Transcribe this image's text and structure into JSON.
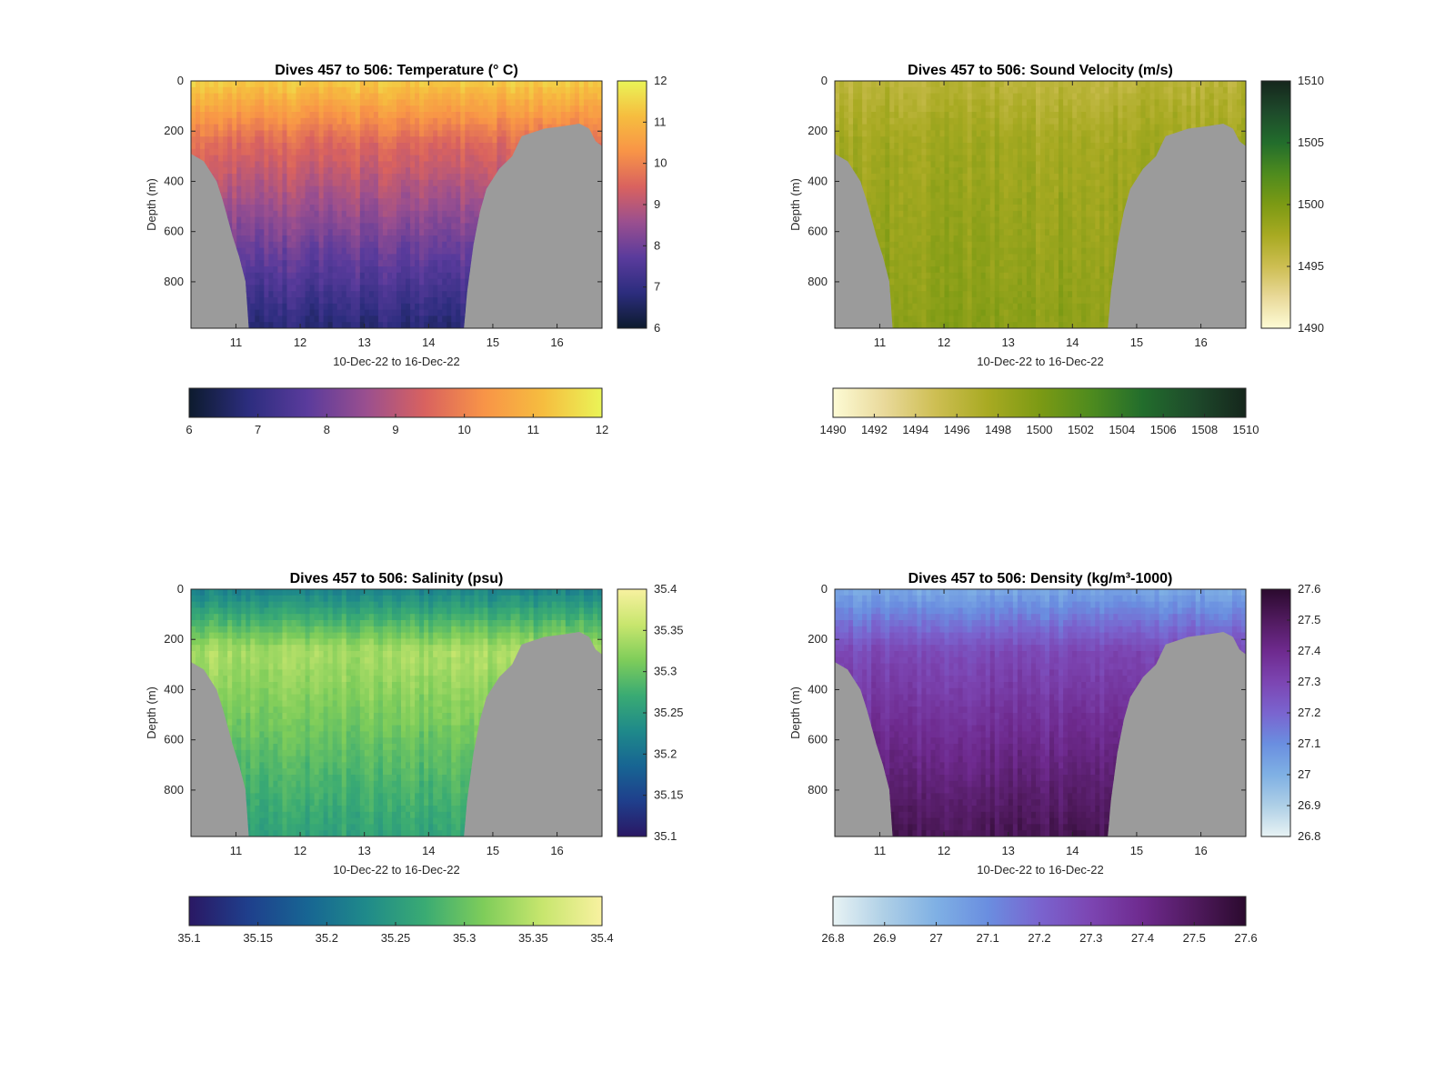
{
  "theme": {
    "land_color": "#9b9b9b",
    "axis_color": "#262626"
  },
  "chart_data": [
    {
      "type": "heatmap",
      "title": "Dives 457 to 506: Temperature (° C)",
      "xlabel": "10-Dec-22 to 16-Dec-22",
      "ylabel": "Depth (m)",
      "xlim": [
        10.3,
        16.7
      ],
      "ylim": [
        0,
        985
      ],
      "x_ticks": [
        11,
        12,
        13,
        14,
        15,
        16
      ],
      "y_ticks": [
        0,
        200,
        400,
        600,
        800
      ],
      "colorbar": {
        "ticks": [
          "6",
          "7",
          "8",
          "9",
          "10",
          "11",
          "12"
        ],
        "range": [
          6,
          12
        ],
        "colors": [
          "#0d1b2e",
          "#2c2d7e",
          "#5a3b9c",
          "#9a4f8f",
          "#d9625f",
          "#f89447",
          "#f6bd3f",
          "#eaf457"
        ]
      },
      "profile": {
        "surface": 11.4,
        "mid": 9.6,
        "bottom": 6.8
      },
      "bathymetry": [
        [
          10.3,
          290
        ],
        [
          10.5,
          320
        ],
        [
          10.7,
          400
        ],
        [
          10.8,
          480
        ],
        [
          10.95,
          620
        ],
        [
          11.05,
          700
        ],
        [
          11.15,
          800
        ],
        [
          11.2,
          985
        ],
        [
          14.55,
          985
        ],
        [
          14.6,
          840
        ],
        [
          14.7,
          650
        ],
        [
          14.8,
          520
        ],
        [
          14.9,
          430
        ],
        [
          15.1,
          350
        ],
        [
          15.3,
          300
        ],
        [
          15.45,
          220
        ],
        [
          15.8,
          190
        ],
        [
          16.1,
          180
        ],
        [
          16.35,
          170
        ],
        [
          16.5,
          190
        ],
        [
          16.6,
          240
        ],
        [
          16.7,
          260
        ]
      ]
    },
    {
      "type": "heatmap",
      "title": "Dives 457 to 506: Sound Velocity (m/s)",
      "xlabel": "10-Dec-22 to 16-Dec-22",
      "ylabel": "Depth (m)",
      "xlim": [
        10.3,
        16.7
      ],
      "ylim": [
        0,
        985
      ],
      "x_ticks": [
        11,
        12,
        13,
        14,
        15,
        16
      ],
      "y_ticks": [
        0,
        200,
        400,
        600,
        800
      ],
      "colorbar": {
        "ticks": [
          "1490",
          "1492",
          "1494",
          "1496",
          "1498",
          "1500",
          "1502",
          "1504",
          "1506",
          "1508",
          "1510"
        ],
        "right_ticks": [
          "1490",
          "1495",
          "1500",
          "1505",
          "1510"
        ],
        "range": [
          1490,
          1510
        ],
        "colors": [
          "#fdfbd5",
          "#e9d99a",
          "#cdbe52",
          "#a8aa22",
          "#7c9a14",
          "#4e8b1e",
          "#226d2c",
          "#1e4a2b",
          "#15261c"
        ]
      },
      "profile": {
        "surface": 1496.2,
        "mid": 1497.8,
        "bottom": 1499.2
      },
      "bathymetry": [
        [
          10.3,
          290
        ],
        [
          10.5,
          320
        ],
        [
          10.7,
          400
        ],
        [
          10.8,
          480
        ],
        [
          10.95,
          620
        ],
        [
          11.05,
          700
        ],
        [
          11.15,
          800
        ],
        [
          11.2,
          985
        ],
        [
          14.55,
          985
        ],
        [
          14.6,
          840
        ],
        [
          14.7,
          650
        ],
        [
          14.8,
          520
        ],
        [
          14.9,
          430
        ],
        [
          15.1,
          350
        ],
        [
          15.3,
          300
        ],
        [
          15.45,
          220
        ],
        [
          15.8,
          190
        ],
        [
          16.1,
          180
        ],
        [
          16.35,
          170
        ],
        [
          16.5,
          190
        ],
        [
          16.6,
          240
        ],
        [
          16.7,
          260
        ]
      ]
    },
    {
      "type": "heatmap",
      "title": "Dives 457 to 506: Salinity (psu)",
      "xlabel": "10-Dec-22 to 16-Dec-22",
      "ylabel": "Depth (m)",
      "xlim": [
        10.3,
        16.7
      ],
      "ylim": [
        0,
        985
      ],
      "x_ticks": [
        11,
        12,
        13,
        14,
        15,
        16
      ],
      "y_ticks": [
        0,
        200,
        400,
        600,
        800
      ],
      "colorbar": {
        "ticks": [
          "35.1",
          "35.15",
          "35.2",
          "35.25",
          "35.3",
          "35.35",
          "35.4"
        ],
        "range": [
          35.1,
          35.4
        ],
        "colors": [
          "#2a1864",
          "#1f3f8c",
          "#176593",
          "#1f8a8a",
          "#3aab73",
          "#7fcd5a",
          "#c8e66e",
          "#f8f1a0"
        ]
      },
      "profile": {
        "surface": 35.22,
        "mid": 35.34,
        "bottom": 35.26
      },
      "bathymetry": [
        [
          10.3,
          290
        ],
        [
          10.5,
          320
        ],
        [
          10.7,
          400
        ],
        [
          10.8,
          480
        ],
        [
          10.95,
          620
        ],
        [
          11.05,
          700
        ],
        [
          11.15,
          800
        ],
        [
          11.2,
          985
        ],
        [
          14.55,
          985
        ],
        [
          14.6,
          840
        ],
        [
          14.7,
          650
        ],
        [
          14.8,
          520
        ],
        [
          14.9,
          430
        ],
        [
          15.1,
          350
        ],
        [
          15.3,
          300
        ],
        [
          15.45,
          220
        ],
        [
          15.8,
          190
        ],
        [
          16.1,
          180
        ],
        [
          16.35,
          170
        ],
        [
          16.5,
          190
        ],
        [
          16.6,
          240
        ],
        [
          16.7,
          260
        ]
      ]
    },
    {
      "type": "heatmap",
      "title": "Dives 457 to 506: Density (kg/m³-1000)",
      "xlabel": "10-Dec-22 to 16-Dec-22",
      "ylabel": "Depth (m)",
      "xlim": [
        10.3,
        16.7
      ],
      "ylim": [
        0,
        985
      ],
      "x_ticks": [
        11,
        12,
        13,
        14,
        15,
        16
      ],
      "y_ticks": [
        0,
        200,
        400,
        600,
        800
      ],
      "colorbar": {
        "ticks": [
          "26.8",
          "26.9",
          "27",
          "27.1",
          "27.2",
          "27.3",
          "27.4",
          "27.5",
          "27.6"
        ],
        "range": [
          26.8,
          27.6
        ],
        "colors": [
          "#e8f3f4",
          "#aecfe6",
          "#7fb0e4",
          "#6a8ee0",
          "#7a64cf",
          "#7c45b2",
          "#6e2a8e",
          "#501a5e",
          "#2b0a2e"
        ]
      },
      "profile": {
        "surface": 27.02,
        "mid": 27.28,
        "bottom": 27.52
      },
      "bathymetry": [
        [
          10.3,
          290
        ],
        [
          10.5,
          320
        ],
        [
          10.7,
          400
        ],
        [
          10.8,
          480
        ],
        [
          10.95,
          620
        ],
        [
          11.05,
          700
        ],
        [
          11.15,
          800
        ],
        [
          11.2,
          985
        ],
        [
          14.55,
          985
        ],
        [
          14.6,
          840
        ],
        [
          14.7,
          650
        ],
        [
          14.8,
          520
        ],
        [
          14.9,
          430
        ],
        [
          15.1,
          350
        ],
        [
          15.3,
          300
        ],
        [
          15.45,
          220
        ],
        [
          15.8,
          190
        ],
        [
          16.1,
          180
        ],
        [
          16.35,
          170
        ],
        [
          16.5,
          190
        ],
        [
          16.6,
          240
        ],
        [
          16.7,
          260
        ]
      ]
    }
  ]
}
